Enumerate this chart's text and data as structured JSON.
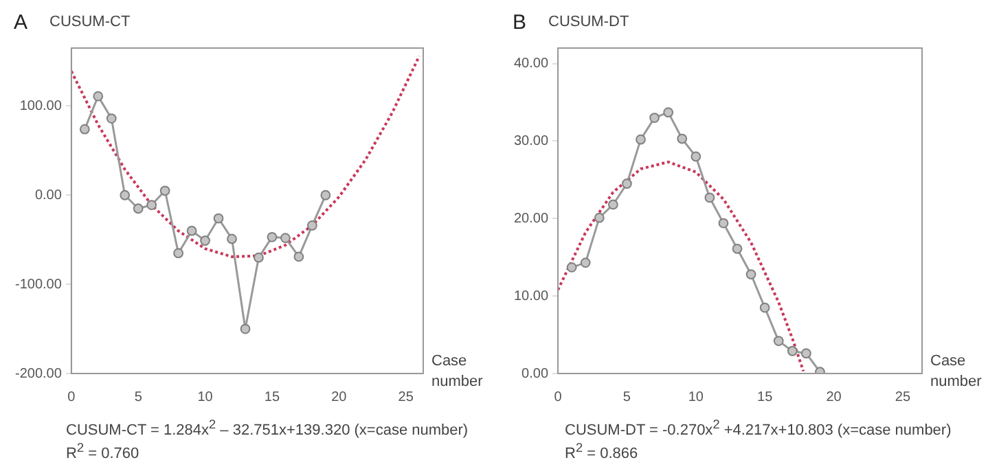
{
  "chart_data": [
    {
      "type": "line",
      "title": "CUSUM-CT",
      "xlabel": "Case number",
      "annotations": [
        "A",
        "CUSUM-CT = 1.284x$^{2}$ – 32.751x+139.320  (x=case number)",
        "R$^{2}$ = 0.760"
      ],
      "xlim": [
        0,
        26.3
      ],
      "xticks": [
        0,
        5,
        10,
        15,
        20,
        25
      ],
      "ylim": [
        -200,
        165
      ],
      "yticks": [
        {
          "value": -200,
          "label": "-200.00"
        },
        {
          "value": -100,
          "label": "-100.00"
        },
        {
          "value": 0,
          "label": "0.00"
        },
        {
          "value": 100,
          "label": "100.00"
        }
      ],
      "grid": false,
      "legend": false,
      "series": [
        {
          "color": "#999999",
          "marker": "circle",
          "line_style": "solid",
          "x": [
            1,
            2,
            3,
            4,
            5,
            6,
            7,
            8,
            9,
            10,
            11,
            12,
            13,
            14,
            15,
            16,
            17,
            18,
            19
          ],
          "values": [
            74,
            111,
            86,
            0,
            -15,
            -11,
            5,
            -65,
            -40,
            -51,
            -26,
            -49,
            -150,
            -70,
            -47,
            -48,
            -69,
            -34,
            0
          ]
        },
        {
          "type": "line",
          "color": "#c8385a",
          "marker": "none",
          "line_style": "dotted",
          "x": [
            0,
            2,
            4,
            6,
            8,
            10,
            12,
            14,
            16,
            18,
            20,
            22,
            24,
            26
          ],
          "values": [
            139,
            79,
            29,
            -11,
            -40,
            -60,
            -69,
            -68,
            -56,
            -34,
            -2,
            40,
            93,
            156
          ]
        }
      ]
    },
    {
      "type": "line",
      "title": "CUSUM-DT",
      "xlabel": "Case number",
      "annotations": [
        "B",
        "CUSUM-DT = -0.270x$^{2}$ +4.217x+10.803  (x=case number)",
        "R$^{2}$ = 0.866"
      ],
      "xlim": [
        0,
        26.4
      ],
      "xticks": [
        0,
        5,
        10,
        15,
        20,
        25
      ],
      "ylim": [
        0,
        42
      ],
      "yticks": [
        {
          "value": 0,
          "label": "0.00"
        },
        {
          "value": 10,
          "label": "10.00"
        },
        {
          "value": 20,
          "label": "20.00"
        },
        {
          "value": 30,
          "label": "30.00"
        },
        {
          "value": 40,
          "label": "40.00"
        }
      ],
      "grid": false,
      "legend": false,
      "series": [
        {
          "color": "#999999",
          "marker": "circle",
          "line_style": "solid",
          "x": [
            1,
            2,
            3,
            4,
            5,
            6,
            7,
            8,
            9,
            10,
            11,
            12,
            13,
            14,
            15,
            16,
            17,
            18,
            19
          ],
          "values": [
            13.7,
            14.3,
            20.1,
            21.8,
            24.5,
            30.2,
            33,
            33.7,
            30.3,
            28,
            22.7,
            19.4,
            16.1,
            12.8,
            8.5,
            4.2,
            2.9,
            2.6,
            0.2
          ]
        },
        {
          "type": "line",
          "color": "#c8385a",
          "marker": "none",
          "line_style": "dotted",
          "x": [
            0,
            2,
            4,
            6,
            8,
            10,
            12,
            14,
            16,
            17,
            17.8
          ],
          "values": [
            10.8,
            18.2,
            23.4,
            26.4,
            27.3,
            26,
            22.5,
            16.9,
            9.2,
            4.5,
            0.3
          ]
        }
      ]
    }
  ]
}
